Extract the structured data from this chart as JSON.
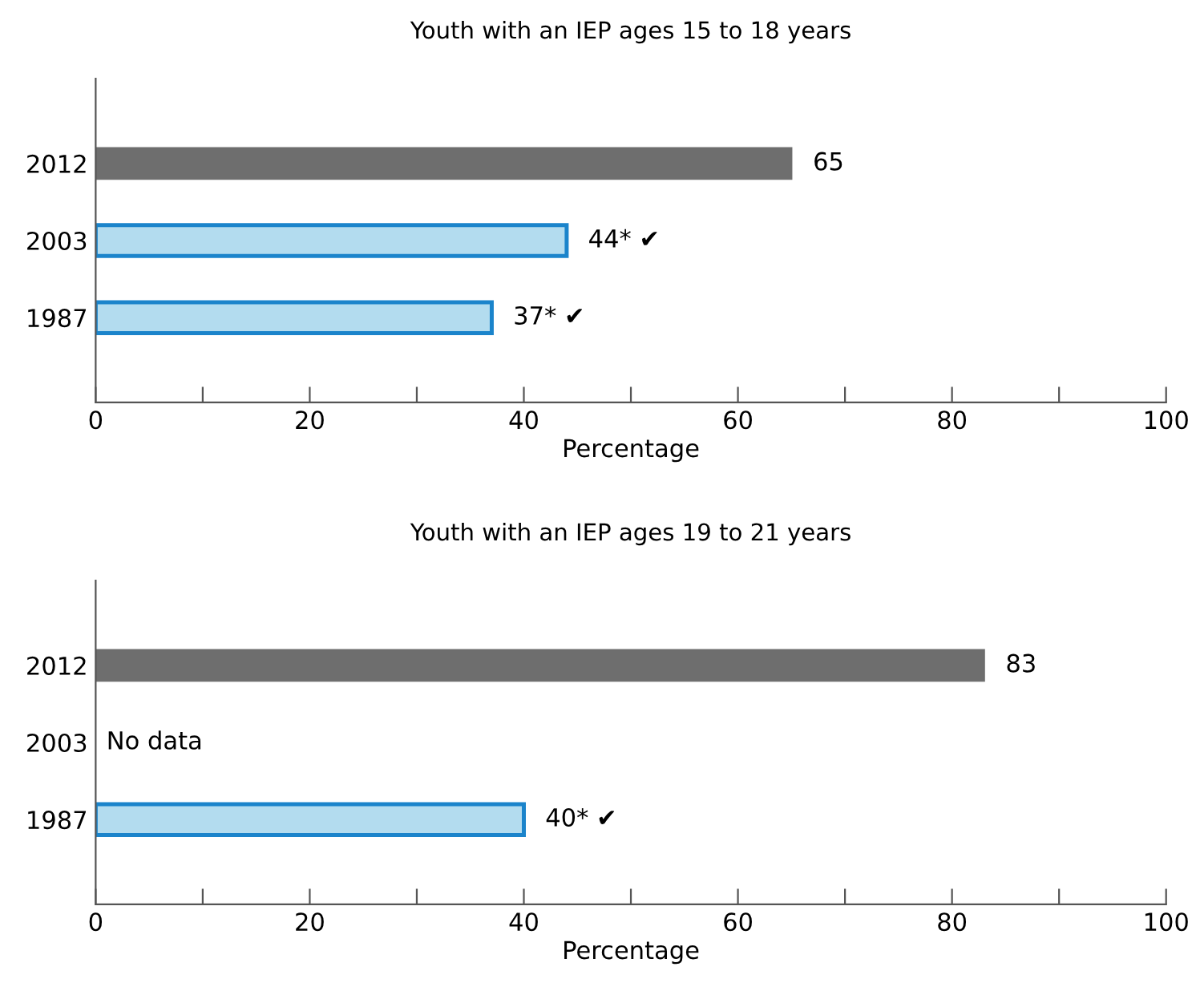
{
  "chart_data": [
    {
      "type": "bar",
      "orientation": "horizontal",
      "title": "Youth with an IEP ages 15 to 18 years",
      "xlabel": "Percentage",
      "categories": [
        "2012",
        "2003",
        "1987"
      ],
      "values": [
        65,
        44,
        37
      ],
      "colors": [
        "#6e6e6e",
        "#b3dcef",
        "#b3dcef"
      ],
      "value_labels": [
        "65",
        "44* ✔",
        "37* ✔"
      ],
      "xlim": [
        0,
        100
      ],
      "xticks": [
        0,
        {
          "value": 10,
          "label": null
        },
        20,
        {
          "value": 30,
          "label": null
        },
        40,
        {
          "value": 50,
          "label": null
        },
        60,
        {
          "value": 70,
          "label": null
        },
        80,
        {
          "value": 90,
          "label": null
        },
        100
      ],
      "grid": false,
      "legend": false
    },
    {
      "type": "bar",
      "orientation": "horizontal",
      "title": "Youth with an IEP ages 19 to 21 years",
      "xlabel": "Percentage",
      "categories": [
        "2012",
        "2003",
        "1987"
      ],
      "values": [
        83,
        null,
        40
      ],
      "colors": [
        "#6e6e6e",
        "#b3dcef",
        "#b3dcef"
      ],
      "value_labels": [
        "83",
        "No data",
        "40* ✔"
      ],
      "xlim": [
        0,
        100
      ],
      "xticks": [
        0,
        {
          "value": 10,
          "label": null
        },
        20,
        {
          "value": 30,
          "label": null
        },
        40,
        {
          "value": 50,
          "label": null
        },
        60,
        {
          "value": 70,
          "label": null
        },
        80,
        {
          "value": 90,
          "label": null
        },
        100
      ],
      "grid": false,
      "legend": false
    }
  ]
}
